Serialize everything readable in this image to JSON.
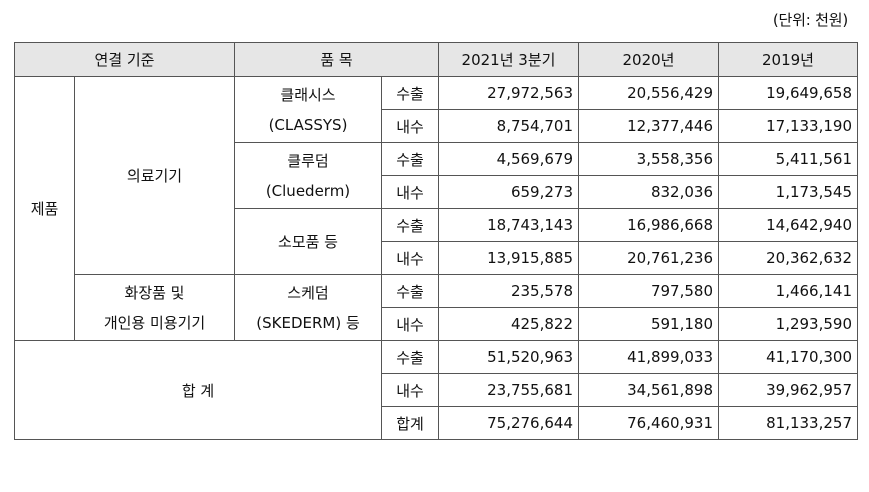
{
  "unit_label": "(단위: 천원)",
  "headers": {
    "group": "연결 기준",
    "item": "품 목",
    "y2021q3": "2021년 3분기",
    "y2020": "2020년",
    "y2019": "2019년"
  },
  "labels": {
    "product": "제품",
    "medical": "의료기기",
    "cosmetic_line1": "화장품 및",
    "cosmetic_line2": "개인용 미용기기",
    "total": "합 계"
  },
  "items": {
    "classys_line1": "클래시스",
    "classys_line2": "(CLASSYS)",
    "cluederm_line1": "클루덤",
    "cluederm_line2": "(Cluederm)",
    "consumables": "소모품 등",
    "skederm_line1": "스케덤",
    "skederm_line2": "(SKEDERM) 등"
  },
  "types": {
    "export": "수출",
    "domestic": "내수",
    "sum": "합계"
  },
  "rows": {
    "classys_export": [
      "27,972,563",
      "20,556,429",
      "19,649,658"
    ],
    "classys_domestic": [
      "8,754,701",
      "12,377,446",
      "17,133,190"
    ],
    "cluederm_export": [
      "4,569,679",
      "3,558,356",
      "5,411,561"
    ],
    "cluederm_domestic": [
      "659,273",
      "832,036",
      "1,173,545"
    ],
    "cons_export": [
      "18,743,143",
      "16,986,668",
      "14,642,940"
    ],
    "cons_domestic": [
      "13,915,885",
      "20,761,236",
      "20,362,632"
    ],
    "ske_export": [
      "235,578",
      "797,580",
      "1,466,141"
    ],
    "ske_domestic": [
      "425,822",
      "591,180",
      "1,293,590"
    ],
    "total_export": [
      "51,520,963",
      "41,899,033",
      "41,170,300"
    ],
    "total_domestic": [
      "23,755,681",
      "34,561,898",
      "39,962,957"
    ],
    "total_sum": [
      "75,276,644",
      "76,460,931",
      "81,133,257"
    ]
  }
}
